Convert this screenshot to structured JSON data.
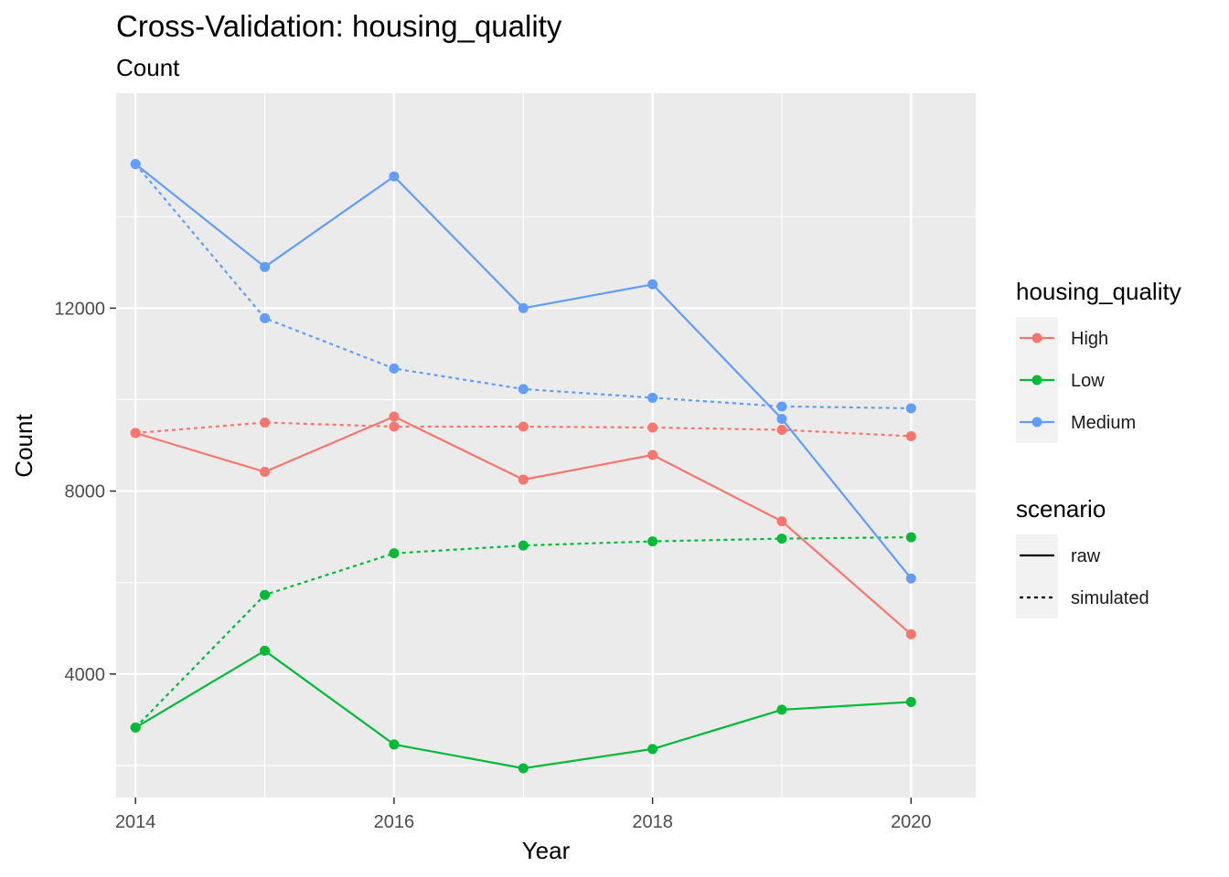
{
  "chart_data": {
    "type": "line",
    "title": "Cross-Validation: housing_quality",
    "subtitle": "Count",
    "xlabel": "Year",
    "ylabel": "Count",
    "x": [
      2014,
      2015,
      2016,
      2017,
      2018,
      2019,
      2020
    ],
    "x_ticks": [
      2014,
      2016,
      2018,
      2020
    ],
    "y_ticks": [
      4000,
      8000,
      12000
    ],
    "xlim": [
      2013.85,
      2020.5
    ],
    "ylim": [
      1300,
      16700
    ],
    "grid": true,
    "legend_position": "right",
    "series": [
      {
        "group": "High",
        "scenario": "raw",
        "color": "#F8766D",
        "dash": "solid",
        "values": [
          9270,
          8420,
          9630,
          8250,
          8790,
          7340,
          4870
        ]
      },
      {
        "group": "High",
        "scenario": "simulated",
        "color": "#F8766D",
        "dash": "dashed",
        "values": [
          9270,
          9500,
          9410,
          9410,
          9390,
          9340,
          9200
        ]
      },
      {
        "group": "Low",
        "scenario": "raw",
        "color": "#00BA38",
        "dash": "solid",
        "values": [
          2830,
          4510,
          2460,
          1940,
          2360,
          3220,
          3390
        ]
      },
      {
        "group": "Low",
        "scenario": "simulated",
        "color": "#00BA38",
        "dash": "dashed",
        "values": [
          2830,
          5730,
          6640,
          6810,
          6900,
          6960,
          6990
        ]
      },
      {
        "group": "Medium",
        "scenario": "raw",
        "color": "#619CFF",
        "dash": "solid",
        "values": [
          15150,
          12900,
          14880,
          12000,
          12520,
          9580,
          6090
        ]
      },
      {
        "group": "Medium",
        "scenario": "simulated",
        "color": "#619CFF",
        "dash": "dashed",
        "values": [
          15150,
          11780,
          10680,
          10230,
          10040,
          9850,
          9810
        ]
      }
    ],
    "legend": {
      "color_title": "housing_quality",
      "color_items": [
        {
          "label": "High",
          "color": "#F8766D"
        },
        {
          "label": "Low",
          "color": "#00BA38"
        },
        {
          "label": "Medium",
          "color": "#619CFF"
        }
      ],
      "linetype_title": "scenario",
      "linetype_items": [
        {
          "label": "raw",
          "dash": "solid"
        },
        {
          "label": "simulated",
          "dash": "dashed"
        }
      ]
    }
  }
}
